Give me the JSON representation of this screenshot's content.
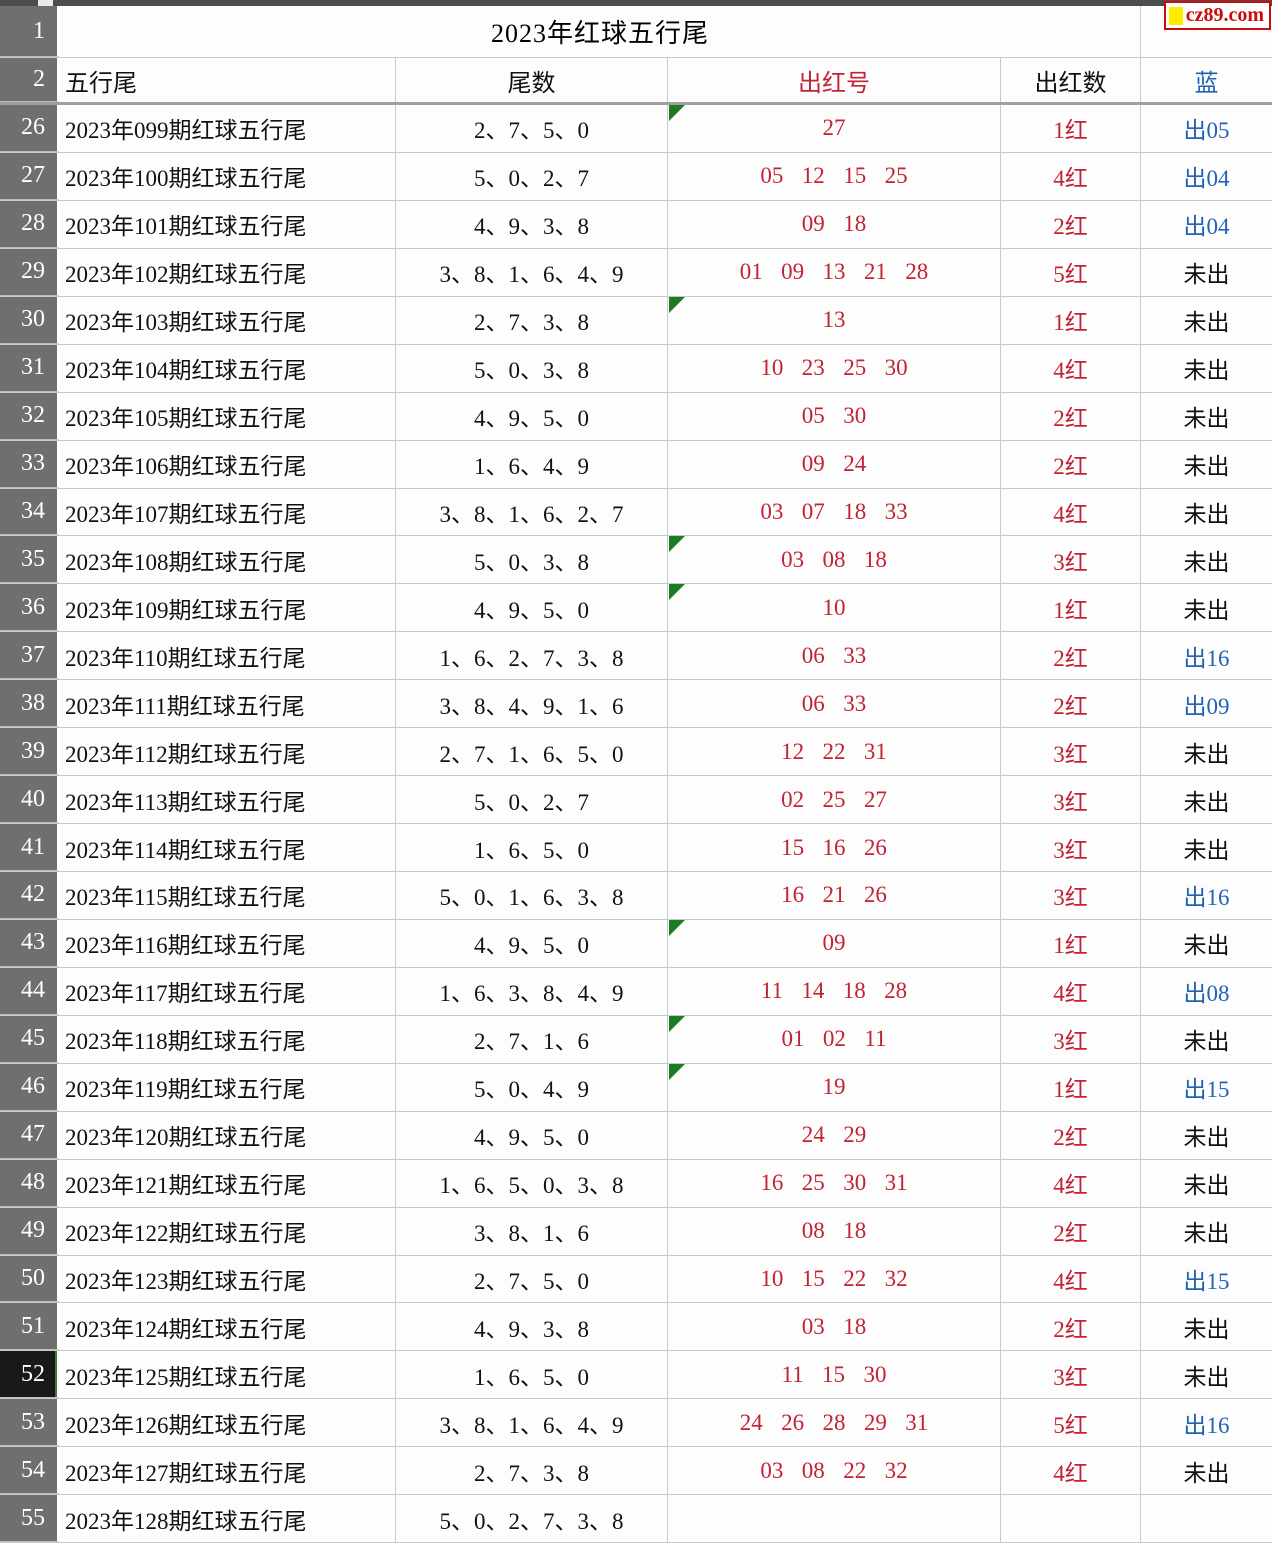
{
  "title": "2023年红球五行尾",
  "logo": {
    "text": "cz89.com"
  },
  "gutter": {
    "title_row": "1",
    "header_row": "2"
  },
  "header": {
    "cols": [
      "五行尾",
      "尾数",
      "出红号",
      "出红数",
      "蓝"
    ]
  },
  "colors": {
    "red_text": "#c32233",
    "blue_text": "#2063b4",
    "marker_green": "#1d7a22",
    "gutter_gray": "#6f6f6f",
    "selected_row_bg": "#191919",
    "grid_line": "#c9c9c9",
    "logo_red": "#cf0a0a",
    "logo_yellow": "#ffee00"
  },
  "rows": [
    {
      "num": "26",
      "period": "2023年099期红球五行尾",
      "tails": "2、7、5、0",
      "reds": "27",
      "count": "1红",
      "blue": "出05",
      "hit": true,
      "marker": true,
      "selected": false
    },
    {
      "num": "27",
      "period": "2023年100期红球五行尾",
      "tails": "5、0、2、7",
      "reds": "05 12 15 25",
      "count": "4红",
      "blue": "出04",
      "hit": true,
      "marker": false,
      "selected": false
    },
    {
      "num": "28",
      "period": "2023年101期红球五行尾",
      "tails": "4、9、3、8",
      "reds": "09 18",
      "count": "2红",
      "blue": "出04",
      "hit": true,
      "marker": false,
      "selected": false
    },
    {
      "num": "29",
      "period": "2023年102期红球五行尾",
      "tails": "3、8、1、6、4、9",
      "reds": "01 09 13 21 28",
      "count": "5红",
      "blue": "未出",
      "hit": false,
      "marker": false,
      "selected": false
    },
    {
      "num": "30",
      "period": "2023年103期红球五行尾",
      "tails": "2、7、3、8",
      "reds": "13",
      "count": "1红",
      "blue": "未出",
      "hit": false,
      "marker": true,
      "selected": false
    },
    {
      "num": "31",
      "period": "2023年104期红球五行尾",
      "tails": "5、0、3、8",
      "reds": "10 23 25 30",
      "count": "4红",
      "blue": "未出",
      "hit": false,
      "marker": false,
      "selected": false
    },
    {
      "num": "32",
      "period": "2023年105期红球五行尾",
      "tails": "4、9、5、0",
      "reds": "05 30",
      "count": "2红",
      "blue": "未出",
      "hit": false,
      "marker": false,
      "selected": false
    },
    {
      "num": "33",
      "period": "2023年106期红球五行尾",
      "tails": "1、6、4、9",
      "reds": "09 24",
      "count": "2红",
      "blue": "未出",
      "hit": false,
      "marker": false,
      "selected": false
    },
    {
      "num": "34",
      "period": "2023年107期红球五行尾",
      "tails": "3、8、1、6、2、7",
      "reds": "03 07 18 33",
      "count": "4红",
      "blue": "未出",
      "hit": false,
      "marker": false,
      "selected": false
    },
    {
      "num": "35",
      "period": "2023年108期红球五行尾",
      "tails": "5、0、3、8",
      "reds": "03 08 18",
      "count": "3红",
      "blue": "未出",
      "hit": false,
      "marker": true,
      "selected": false
    },
    {
      "num": "36",
      "period": "2023年109期红球五行尾",
      "tails": "4、9、5、0",
      "reds": "10",
      "count": "1红",
      "blue": "未出",
      "hit": false,
      "marker": true,
      "selected": false
    },
    {
      "num": "37",
      "period": "2023年110期红球五行尾",
      "tails": "1、6、2、7、3、8",
      "reds": "06 33",
      "count": "2红",
      "blue": "出16",
      "hit": true,
      "marker": false,
      "selected": false
    },
    {
      "num": "38",
      "period": "2023年111期红球五行尾",
      "tails": "3、8、4、9、1、6",
      "reds": "06 33",
      "count": "2红",
      "blue": "出09",
      "hit": true,
      "marker": false,
      "selected": false
    },
    {
      "num": "39",
      "period": "2023年112期红球五行尾",
      "tails": "2、7、1、6、5、0",
      "reds": "12 22 31",
      "count": "3红",
      "blue": "未出",
      "hit": false,
      "marker": false,
      "selected": false
    },
    {
      "num": "40",
      "period": "2023年113期红球五行尾",
      "tails": "5、0、2、7",
      "reds": "02 25 27",
      "count": "3红",
      "blue": "未出",
      "hit": false,
      "marker": false,
      "selected": false
    },
    {
      "num": "41",
      "period": "2023年114期红球五行尾",
      "tails": "1、6、5、0",
      "reds": "15 16 26",
      "count": "3红",
      "blue": "未出",
      "hit": false,
      "marker": false,
      "selected": false
    },
    {
      "num": "42",
      "period": "2023年115期红球五行尾",
      "tails": "5、0、1、6、3、8",
      "reds": "16 21 26",
      "count": "3红",
      "blue": "出16",
      "hit": true,
      "marker": false,
      "selected": false
    },
    {
      "num": "43",
      "period": "2023年116期红球五行尾",
      "tails": "4、9、5、0",
      "reds": "09",
      "count": "1红",
      "blue": "未出",
      "hit": false,
      "marker": true,
      "selected": false
    },
    {
      "num": "44",
      "period": "2023年117期红球五行尾",
      "tails": "1、6、3、8、4、9",
      "reds": "11 14 18 28",
      "count": "4红",
      "blue": "出08",
      "hit": true,
      "marker": false,
      "selected": false
    },
    {
      "num": "45",
      "period": "2023年118期红球五行尾",
      "tails": "2、7、1、6",
      "reds": "01 02 11",
      "count": "3红",
      "blue": "未出",
      "hit": false,
      "marker": true,
      "selected": false
    },
    {
      "num": "46",
      "period": "2023年119期红球五行尾",
      "tails": "5、0、4、9",
      "reds": "19",
      "count": "1红",
      "blue": "出15",
      "hit": true,
      "marker": true,
      "selected": false
    },
    {
      "num": "47",
      "period": "2023年120期红球五行尾",
      "tails": "4、9、5、0",
      "reds": "24 29",
      "count": "2红",
      "blue": "未出",
      "hit": false,
      "marker": false,
      "selected": false
    },
    {
      "num": "48",
      "period": "2023年121期红球五行尾",
      "tails": "1、6、5、0、3、8",
      "reds": "16 25 30 31",
      "count": "4红",
      "blue": "未出",
      "hit": false,
      "marker": false,
      "selected": false
    },
    {
      "num": "49",
      "period": "2023年122期红球五行尾",
      "tails": "3、8、1、6",
      "reds": "08 18",
      "count": "2红",
      "blue": "未出",
      "hit": false,
      "marker": false,
      "selected": false
    },
    {
      "num": "50",
      "period": "2023年123期红球五行尾",
      "tails": "2、7、5、0",
      "reds": "10 15 22 32",
      "count": "4红",
      "blue": "出15",
      "hit": true,
      "marker": false,
      "selected": false
    },
    {
      "num": "51",
      "period": "2023年124期红球五行尾",
      "tails": "4、9、3、8",
      "reds": "03 18",
      "count": "2红",
      "blue": "未出",
      "hit": false,
      "marker": false,
      "selected": false
    },
    {
      "num": "52",
      "period": "2023年125期红球五行尾",
      "tails": "1、6、5、0",
      "reds": "11 15 30",
      "count": "3红",
      "blue": "未出",
      "hit": false,
      "marker": false,
      "selected": true
    },
    {
      "num": "53",
      "period": "2023年126期红球五行尾",
      "tails": "3、8、1、6、4、9",
      "reds": "24 26 28 29 31",
      "count": "5红",
      "blue": "出16",
      "hit": true,
      "marker": false,
      "selected": false
    },
    {
      "num": "54",
      "period": "2023年127期红球五行尾",
      "tails": "2、7、3、8",
      "reds": "03 08 22 32",
      "count": "4红",
      "blue": "未出",
      "hit": false,
      "marker": false,
      "selected": false
    },
    {
      "num": "55",
      "period": "2023年128期红球五行尾",
      "tails": "5、0、2、7、3、8",
      "reds": "",
      "count": "",
      "blue": "",
      "hit": false,
      "marker": false,
      "selected": false
    }
  ]
}
